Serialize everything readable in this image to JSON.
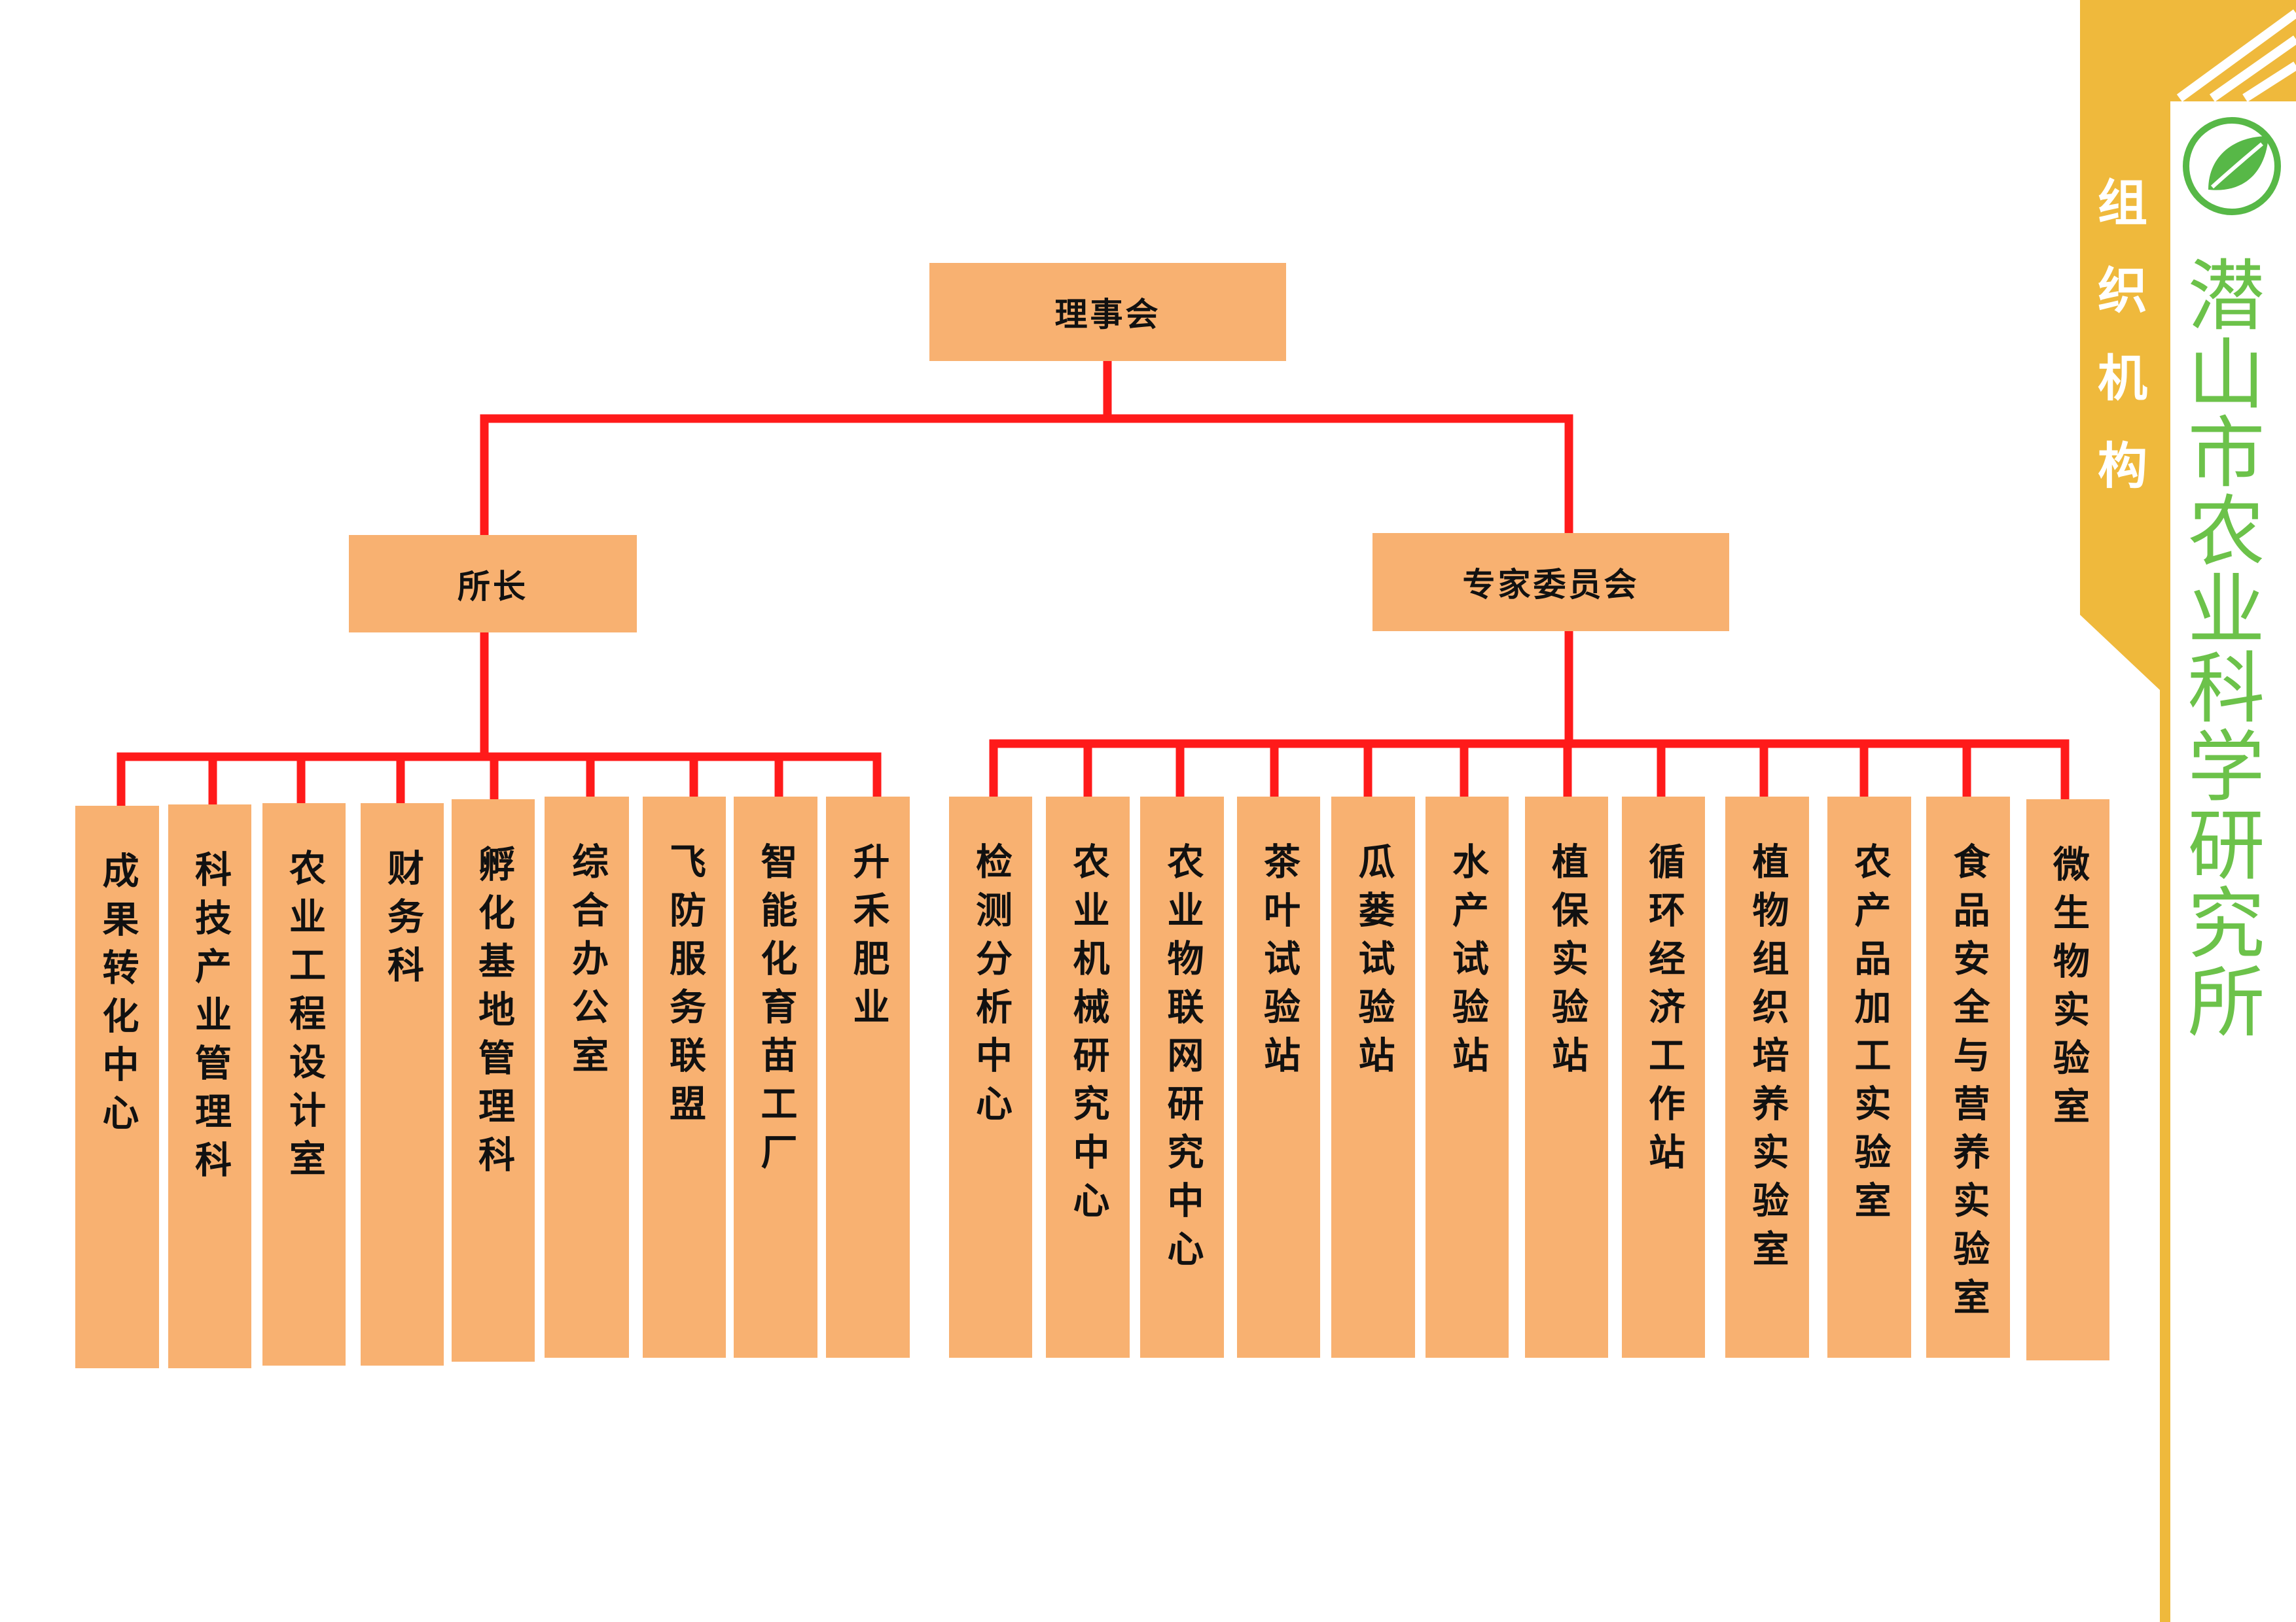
{
  "root": "理事会",
  "branches": [
    {
      "name": "所长",
      "children": [
        "成果转化中心",
        "科技产业管理科",
        "农业工程设计室",
        "财务科",
        "孵化基地管理科",
        "综合办公室",
        "飞防服务联盟",
        "智能化育苗工厂",
        "升禾肥业"
      ]
    },
    {
      "name": "专家委员会",
      "children": [
        "检测分析中心",
        "农业机械研究中心",
        "农业物联网研究中心",
        "茶叶试验站",
        "瓜蒌试验站",
        "水产试验站",
        "植保实验站",
        "循环经济工作站",
        "植物组织培养实验室",
        "农产品加工实验室",
        "食品安全与营养实验室",
        "微生物实验室"
      ]
    }
  ],
  "banner": {
    "title": "组织机构",
    "org_name": "潜山市农业科学研究所",
    "logo_icon": "leaf-circle-logo-icon"
  },
  "colors": {
    "box_fill": "#f8b171",
    "connector": "#ff1a1a",
    "banner_gold": "#efb93c",
    "org_name_green": "#6cc24a"
  }
}
